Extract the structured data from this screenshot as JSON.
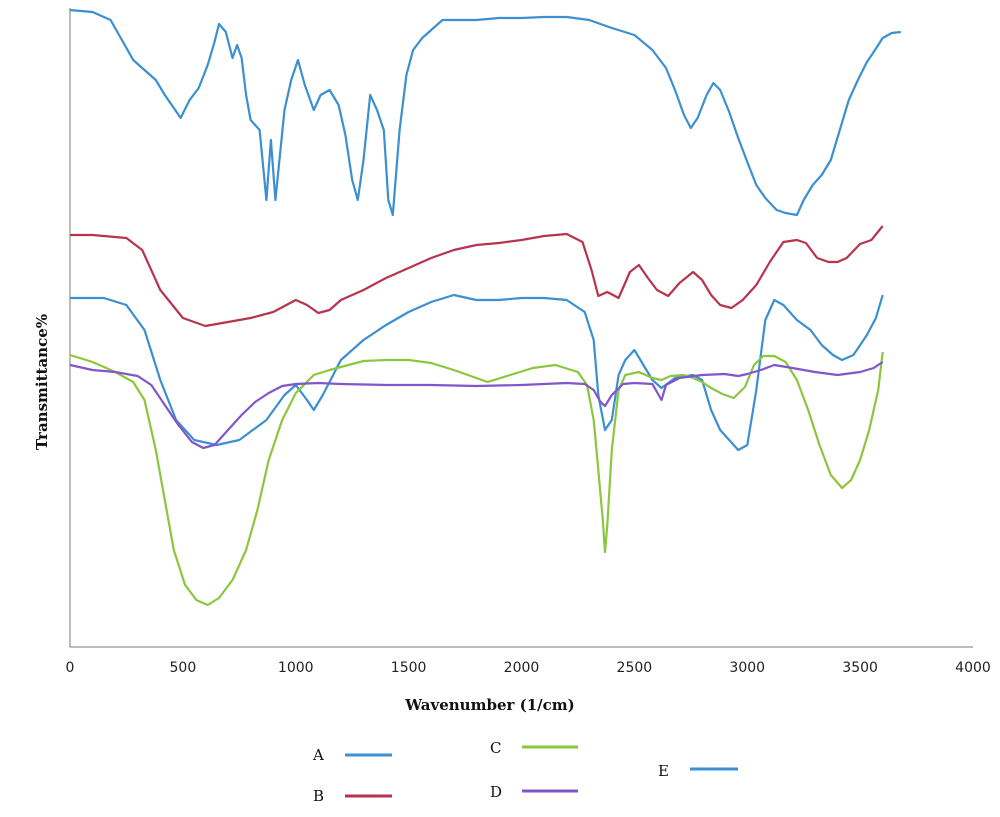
{
  "chart_data": {
    "type": "line",
    "title": "",
    "xlabel": "Wavenumber (1/cm)",
    "ylabel": "Transmittance%",
    "xlim": [
      0,
      4000
    ],
    "x_ticks": [
      "0",
      "500",
      "1000",
      "1500",
      "2000",
      "2500",
      "3000",
      "3500",
      "4000"
    ],
    "y_ticks_shown": false,
    "grid": false,
    "legend_position": "bottom",
    "series": [
      {
        "name": "A",
        "color": "#3c8fd0",
        "points": [
          [
            0,
            298
          ],
          [
            150,
            298
          ],
          [
            250,
            305
          ],
          [
            330,
            330
          ],
          [
            400,
            380
          ],
          [
            470,
            420
          ],
          [
            550,
            440
          ],
          [
            650,
            445
          ],
          [
            750,
            440
          ],
          [
            870,
            420
          ],
          [
            950,
            395
          ],
          [
            1000,
            385
          ],
          [
            1050,
            400
          ],
          [
            1080,
            410
          ],
          [
            1120,
            395
          ],
          [
            1200,
            360
          ],
          [
            1300,
            340
          ],
          [
            1400,
            325
          ],
          [
            1500,
            312
          ],
          [
            1600,
            302
          ],
          [
            1700,
            295
          ],
          [
            1800,
            300
          ],
          [
            1900,
            300
          ],
          [
            2000,
            298
          ],
          [
            2100,
            298
          ],
          [
            2200,
            300
          ],
          [
            2280,
            312
          ],
          [
            2320,
            340
          ],
          [
            2340,
            395
          ],
          [
            2370,
            430
          ],
          [
            2400,
            420
          ],
          [
            2430,
            375
          ],
          [
            2460,
            360
          ],
          [
            2500,
            350
          ],
          [
            2540,
            365
          ],
          [
            2580,
            380
          ],
          [
            2620,
            388
          ],
          [
            2680,
            378
          ],
          [
            2760,
            375
          ],
          [
            2800,
            380
          ],
          [
            2840,
            410
          ],
          [
            2880,
            430
          ],
          [
            2920,
            440
          ],
          [
            2960,
            450
          ],
          [
            3000,
            445
          ],
          [
            3040,
            390
          ],
          [
            3080,
            320
          ],
          [
            3120,
            300
          ],
          [
            3160,
            305
          ],
          [
            3220,
            320
          ],
          [
            3280,
            330
          ],
          [
            3330,
            345
          ],
          [
            3380,
            355
          ],
          [
            3420,
            360
          ],
          [
            3470,
            355
          ],
          [
            3530,
            335
          ],
          [
            3570,
            318
          ],
          [
            3600,
            295
          ]
        ]
      },
      {
        "name": "B",
        "color": "#b8334e",
        "points": [
          [
            0,
            235
          ],
          [
            100,
            235
          ],
          [
            250,
            238
          ],
          [
            320,
            250
          ],
          [
            400,
            290
          ],
          [
            500,
            318
          ],
          [
            600,
            326
          ],
          [
            700,
            322
          ],
          [
            800,
            318
          ],
          [
            900,
            312
          ],
          [
            1000,
            300
          ],
          [
            1050,
            305
          ],
          [
            1100,
            313
          ],
          [
            1150,
            310
          ],
          [
            1200,
            300
          ],
          [
            1300,
            290
          ],
          [
            1400,
            278
          ],
          [
            1500,
            268
          ],
          [
            1600,
            258
          ],
          [
            1700,
            250
          ],
          [
            1800,
            245
          ],
          [
            1900,
            243
          ],
          [
            2000,
            240
          ],
          [
            2100,
            236
          ],
          [
            2200,
            234
          ],
          [
            2270,
            242
          ],
          [
            2310,
            270
          ],
          [
            2340,
            296
          ],
          [
            2380,
            292
          ],
          [
            2430,
            298
          ],
          [
            2480,
            272
          ],
          [
            2520,
            265
          ],
          [
            2560,
            278
          ],
          [
            2600,
            290
          ],
          [
            2650,
            296
          ],
          [
            2700,
            283
          ],
          [
            2760,
            272
          ],
          [
            2800,
            280
          ],
          [
            2840,
            295
          ],
          [
            2880,
            305
          ],
          [
            2930,
            308
          ],
          [
            2980,
            300
          ],
          [
            3040,
            285
          ],
          [
            3100,
            262
          ],
          [
            3160,
            242
          ],
          [
            3220,
            240
          ],
          [
            3260,
            243
          ],
          [
            3310,
            258
          ],
          [
            3360,
            262
          ],
          [
            3400,
            262
          ],
          [
            3440,
            258
          ],
          [
            3500,
            244
          ],
          [
            3550,
            240
          ],
          [
            3600,
            226
          ]
        ]
      },
      {
        "name": "C",
        "color": "#8cc63e",
        "points": [
          [
            0,
            355
          ],
          [
            100,
            362
          ],
          [
            200,
            372
          ],
          [
            280,
            382
          ],
          [
            330,
            400
          ],
          [
            380,
            450
          ],
          [
            420,
            500
          ],
          [
            460,
            550
          ],
          [
            510,
            585
          ],
          [
            560,
            600
          ],
          [
            610,
            605
          ],
          [
            660,
            598
          ],
          [
            720,
            580
          ],
          [
            780,
            550
          ],
          [
            830,
            510
          ],
          [
            880,
            460
          ],
          [
            940,
            420
          ],
          [
            1000,
            393
          ],
          [
            1080,
            375
          ],
          [
            1150,
            370
          ],
          [
            1300,
            361
          ],
          [
            1400,
            360
          ],
          [
            1500,
            360
          ],
          [
            1600,
            363
          ],
          [
            1700,
            370
          ],
          [
            1800,
            378
          ],
          [
            1850,
            382
          ],
          [
            1950,
            375
          ],
          [
            2050,
            368
          ],
          [
            2150,
            365
          ],
          [
            2250,
            372
          ],
          [
            2290,
            385
          ],
          [
            2320,
            420
          ],
          [
            2340,
            470
          ],
          [
            2360,
            520
          ],
          [
            2370,
            552
          ],
          [
            2380,
            525
          ],
          [
            2400,
            450
          ],
          [
            2430,
            390
          ],
          [
            2460,
            375
          ],
          [
            2520,
            372
          ],
          [
            2580,
            378
          ],
          [
            2620,
            380
          ],
          [
            2660,
            376
          ],
          [
            2720,
            375
          ],
          [
            2760,
            378
          ],
          [
            2800,
            382
          ],
          [
            2840,
            388
          ],
          [
            2890,
            394
          ],
          [
            2940,
            398
          ],
          [
            2990,
            387
          ],
          [
            3030,
            365
          ],
          [
            3070,
            356
          ],
          [
            3120,
            356
          ],
          [
            3170,
            362
          ],
          [
            3220,
            380
          ],
          [
            3270,
            410
          ],
          [
            3320,
            445
          ],
          [
            3370,
            475
          ],
          [
            3420,
            488
          ],
          [
            3460,
            480
          ],
          [
            3500,
            460
          ],
          [
            3540,
            430
          ],
          [
            3580,
            390
          ],
          [
            3600,
            352
          ]
        ]
      },
      {
        "name": "D",
        "color": "#8255cc",
        "points": [
          [
            0,
            365
          ],
          [
            100,
            370
          ],
          [
            200,
            372
          ],
          [
            300,
            376
          ],
          [
            360,
            385
          ],
          [
            420,
            405
          ],
          [
            480,
            425
          ],
          [
            540,
            442
          ],
          [
            590,
            448
          ],
          [
            640,
            445
          ],
          [
            700,
            430
          ],
          [
            760,
            415
          ],
          [
            820,
            402
          ],
          [
            880,
            393
          ],
          [
            940,
            386
          ],
          [
            1000,
            384
          ],
          [
            1100,
            383
          ],
          [
            1200,
            384
          ],
          [
            1400,
            385
          ],
          [
            1600,
            385
          ],
          [
            1800,
            386
          ],
          [
            2000,
            385
          ],
          [
            2200,
            383
          ],
          [
            2280,
            384
          ],
          [
            2320,
            390
          ],
          [
            2350,
            402
          ],
          [
            2370,
            406
          ],
          [
            2400,
            395
          ],
          [
            2450,
            384
          ],
          [
            2500,
            383
          ],
          [
            2580,
            384
          ],
          [
            2620,
            400
          ],
          [
            2640,
            385
          ],
          [
            2700,
            378
          ],
          [
            2800,
            375
          ],
          [
            2900,
            374
          ],
          [
            2960,
            376
          ],
          [
            3000,
            374
          ],
          [
            3060,
            370
          ],
          [
            3120,
            365
          ],
          [
            3200,
            368
          ],
          [
            3300,
            372
          ],
          [
            3400,
            375
          ],
          [
            3500,
            372
          ],
          [
            3560,
            368
          ],
          [
            3600,
            362
          ]
        ]
      },
      {
        "name": "E",
        "color": "#3c8fd0",
        "points": [
          [
            0,
            10
          ],
          [
            100,
            12
          ],
          [
            180,
            20
          ],
          [
            230,
            40
          ],
          [
            280,
            60
          ],
          [
            330,
            70
          ],
          [
            380,
            80
          ],
          [
            420,
            95
          ],
          [
            460,
            108
          ],
          [
            490,
            118
          ],
          [
            530,
            100
          ],
          [
            570,
            88
          ],
          [
            610,
            65
          ],
          [
            640,
            42
          ],
          [
            660,
            24
          ],
          [
            690,
            32
          ],
          [
            720,
            58
          ],
          [
            740,
            45
          ],
          [
            760,
            58
          ],
          [
            780,
            95
          ],
          [
            800,
            120
          ],
          [
            840,
            130
          ],
          [
            870,
            200
          ],
          [
            890,
            140
          ],
          [
            910,
            200
          ],
          [
            950,
            110
          ],
          [
            980,
            80
          ],
          [
            1010,
            60
          ],
          [
            1040,
            85
          ],
          [
            1080,
            110
          ],
          [
            1110,
            95
          ],
          [
            1150,
            90
          ],
          [
            1190,
            105
          ],
          [
            1220,
            135
          ],
          [
            1250,
            180
          ],
          [
            1275,
            200
          ],
          [
            1300,
            160
          ],
          [
            1330,
            95
          ],
          [
            1360,
            110
          ],
          [
            1390,
            130
          ],
          [
            1410,
            200
          ],
          [
            1430,
            215
          ],
          [
            1460,
            130
          ],
          [
            1490,
            75
          ],
          [
            1520,
            50
          ],
          [
            1560,
            38
          ],
          [
            1600,
            30
          ],
          [
            1650,
            20
          ],
          [
            1700,
            20
          ],
          [
            1800,
            20
          ],
          [
            1900,
            18
          ],
          [
            2000,
            18
          ],
          [
            2100,
            17
          ],
          [
            2200,
            17
          ],
          [
            2300,
            20
          ],
          [
            2400,
            28
          ],
          [
            2500,
            35
          ],
          [
            2580,
            50
          ],
          [
            2640,
            68
          ],
          [
            2680,
            90
          ],
          [
            2720,
            115
          ],
          [
            2750,
            128
          ],
          [
            2780,
            118
          ],
          [
            2820,
            95
          ],
          [
            2850,
            83
          ],
          [
            2880,
            90
          ],
          [
            2920,
            112
          ],
          [
            2960,
            138
          ],
          [
            3000,
            162
          ],
          [
            3040,
            185
          ],
          [
            3080,
            198
          ],
          [
            3130,
            210
          ],
          [
            3170,
            213
          ],
          [
            3220,
            215
          ],
          [
            3250,
            200
          ],
          [
            3290,
            185
          ],
          [
            3330,
            175
          ],
          [
            3370,
            160
          ],
          [
            3410,
            130
          ],
          [
            3450,
            100
          ],
          [
            3490,
            80
          ],
          [
            3530,
            62
          ],
          [
            3560,
            52
          ],
          [
            3600,
            38
          ],
          [
            3640,
            33
          ],
          [
            3680,
            32
          ]
        ]
      }
    ]
  }
}
